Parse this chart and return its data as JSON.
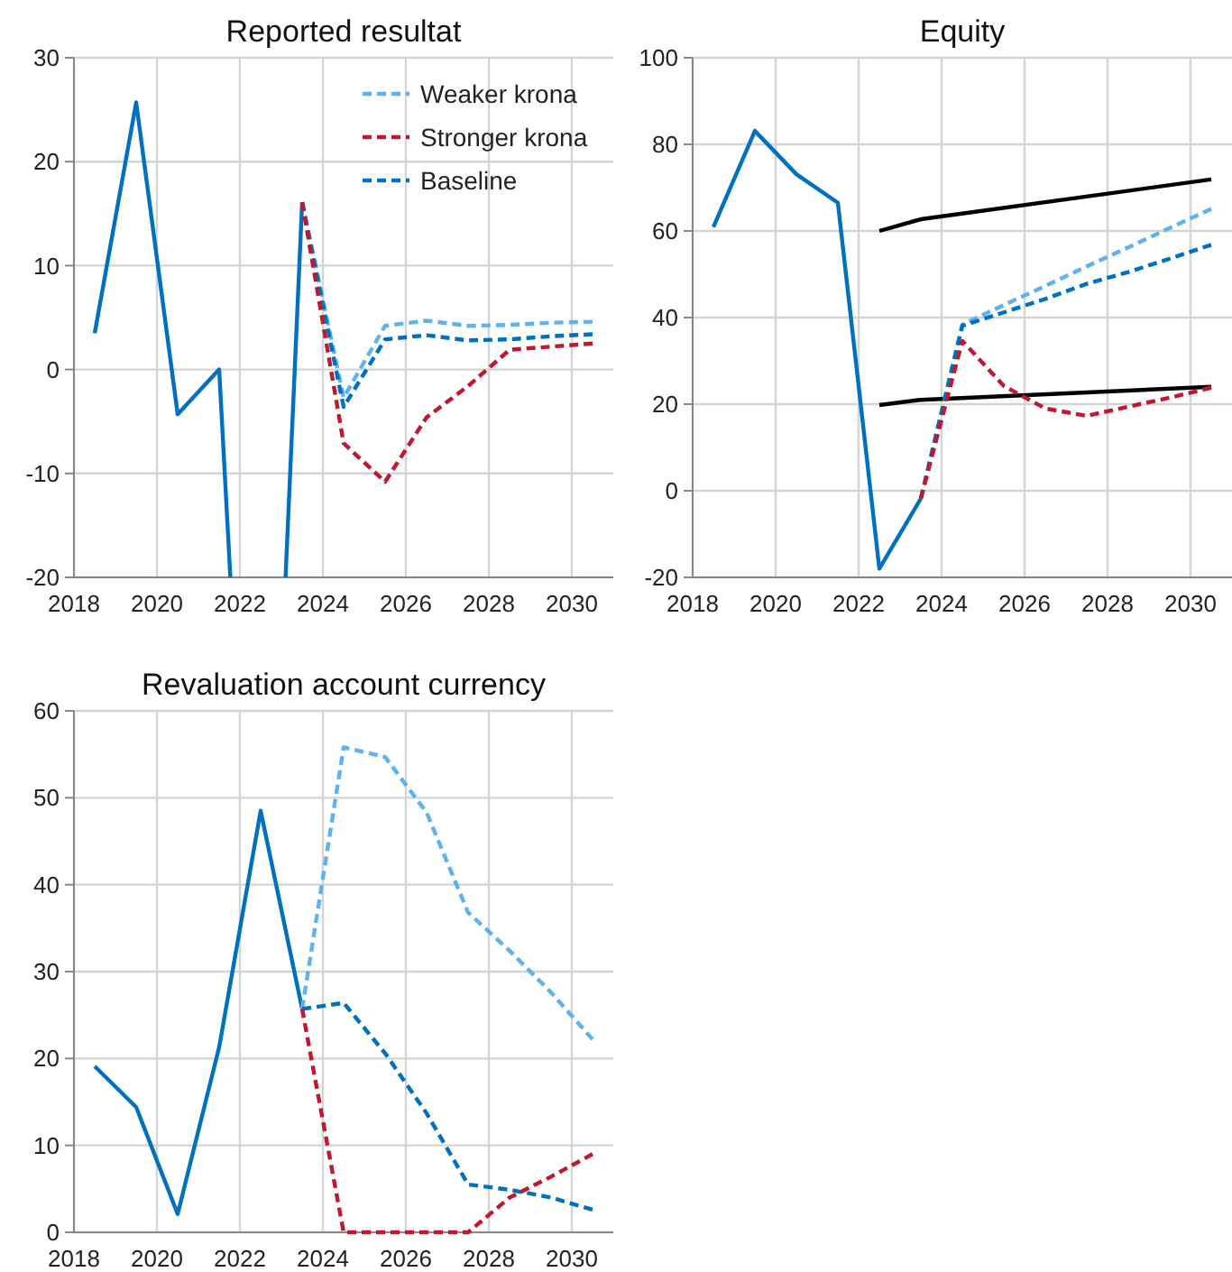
{
  "chart_data": [
    {
      "type": "line",
      "title": "Reported resultat",
      "xlim": [
        2018,
        2031
      ],
      "xticks": [
        2018,
        2020,
        2022,
        2024,
        2026,
        2028,
        2030
      ],
      "ylim": [
        -20,
        30
      ],
      "yticks": [
        -20,
        -10,
        0,
        10,
        20,
        30
      ],
      "grid": true,
      "legend": "top right",
      "series": [
        {
          "color": "#0070c0",
          "line_style": "solid",
          "x": [
            2018.5,
            2019.5,
            2020.5,
            2021.5,
            2021.77,
            2022.5,
            2023.1,
            2023.5
          ],
          "values": [
            3.5,
            25.7,
            -4.3,
            0,
            -20,
            null,
            -20,
            16.1
          ]
        },
        {
          "name": "Weaker krona",
          "color": "#5cb3f0",
          "line_style": "dashed",
          "x": [
            2023.5,
            2024.5,
            2025.5,
            2026.5,
            2027.5,
            2028.5,
            2029.5,
            2030.5
          ],
          "values": [
            16.1,
            -2.7,
            4.2,
            4.7,
            4.2,
            4.3,
            4.5,
            4.6
          ]
        },
        {
          "name": "Stronger krona",
          "color": "#c0182c",
          "line_style": "dashed",
          "x": [
            2023.5,
            2024.5,
            2025.5,
            2026.5,
            2027.5,
            2028.5,
            2029.5,
            2030.5
          ],
          "values": [
            16.1,
            -7.1,
            -10.8,
            -4.6,
            -1.6,
            1.9,
            2.2,
            2.5
          ]
        },
        {
          "name": "Baseline",
          "color": "#0070c0",
          "line_style": "dashed",
          "x": [
            2023.5,
            2024.5,
            2025.5,
            2026.5,
            2027.5,
            2028.5,
            2029.5,
            2030.5
          ],
          "values": [
            16.1,
            -3.6,
            2.9,
            3.3,
            2.8,
            2.9,
            3.2,
            3.4
          ]
        }
      ]
    },
    {
      "type": "line",
      "title": "Equity",
      "xlim": [
        2018,
        2031
      ],
      "xticks": [
        2018,
        2020,
        2022,
        2024,
        2026,
        2028,
        2030
      ],
      "ylim": [
        -20,
        100
      ],
      "yticks": [
        -20,
        0,
        20,
        40,
        60,
        80,
        100
      ],
      "grid": true,
      "series": [
        {
          "color": "#0070c0",
          "line_style": "solid",
          "x": [
            2018.5,
            2019.5,
            2020.5,
            2021.5,
            2022.5,
            2023.5
          ],
          "values": [
            60.9,
            83.1,
            73.1,
            66.5,
            -18,
            -1.8
          ]
        },
        {
          "color": "#000000",
          "line_style": "solid",
          "x": [
            2022.5,
            2023.5,
            2030.5
          ],
          "values": [
            60,
            62.7,
            71.9
          ]
        },
        {
          "color": "#000000",
          "line_style": "solid",
          "x": [
            2022.5,
            2023.5,
            2030.5
          ],
          "values": [
            19.8,
            21,
            24
          ]
        },
        {
          "color": "#5cb3f0",
          "line_style": "dashed",
          "x": [
            2023.5,
            2024.5,
            2025.5,
            2026.5,
            2027.5,
            2028.5,
            2029.5,
            2030.5
          ],
          "values": [
            -1.8,
            38.4,
            42.9,
            47.3,
            51.8,
            56.2,
            60.7,
            65.1
          ]
        },
        {
          "color": "#c0182c",
          "line_style": "dashed",
          "x": [
            2023.5,
            2024.5,
            2025.5,
            2026.5,
            2027.5,
            2028.5,
            2029.5,
            2030.5
          ],
          "values": [
            -1.8,
            34.6,
            24.2,
            19,
            17.3,
            19.4,
            21.5,
            23.8
          ]
        },
        {
          "color": "#0070c0",
          "line_style": "dashed",
          "x": [
            2023.5,
            2024.5,
            2025.5,
            2026.5,
            2027.5,
            2028.5,
            2029.5,
            2030.5
          ],
          "values": [
            -1.8,
            38.1,
            41.2,
            44.3,
            47.8,
            50.5,
            53.6,
            56.8
          ]
        }
      ]
    },
    {
      "type": "line",
      "title": "Revaluation account currency",
      "xlim": [
        2018,
        2031
      ],
      "xticks": [
        2018,
        2020,
        2022,
        2024,
        2026,
        2028,
        2030
      ],
      "ylim": [
        0,
        60
      ],
      "yticks": [
        0,
        10,
        20,
        30,
        40,
        50,
        60
      ],
      "grid": true,
      "series": [
        {
          "color": "#0070c0",
          "line_style": "solid",
          "x": [
            2018.5,
            2019.5,
            2020.5,
            2021.5,
            2022.5,
            2023.5
          ],
          "values": [
            19.1,
            14.4,
            2.1,
            21.3,
            48.5,
            25.7
          ]
        },
        {
          "color": "#5cb3f0",
          "line_style": "dashed",
          "x": [
            2023.5,
            2024.5,
            2025.5,
            2026.5,
            2027.5,
            2028.5,
            2029.5,
            2030.5
          ],
          "values": [
            25.7,
            55.8,
            54.7,
            48.3,
            36.8,
            32.4,
            27.6,
            22.2
          ]
        },
        {
          "color": "#c0182c",
          "line_style": "dashed",
          "x": [
            2023.5,
            2024.5,
            2025.5,
            2026.5,
            2027.5,
            2028.5,
            2029.5,
            2030.5
          ],
          "values": [
            25.7,
            0,
            0,
            0,
            0,
            4,
            6.4,
            9
          ]
        },
        {
          "color": "#0070c0",
          "line_style": "dashed",
          "x": [
            2023.5,
            2024.5,
            2025.5,
            2026.5,
            2027.5,
            2028.5,
            2029.5,
            2030.5
          ],
          "values": [
            25.7,
            26.4,
            20.6,
            13.7,
            5.5,
            4.9,
            4,
            2.6
          ]
        }
      ]
    }
  ]
}
